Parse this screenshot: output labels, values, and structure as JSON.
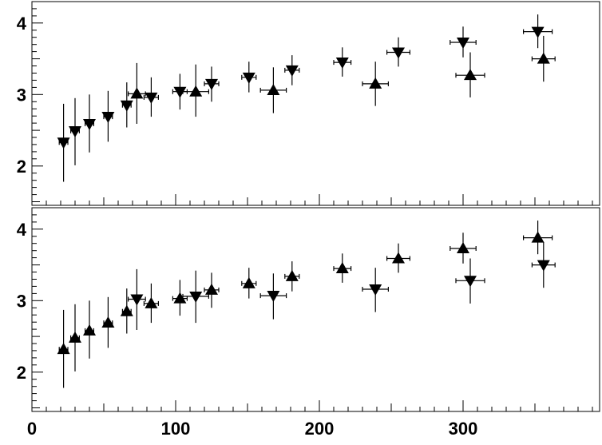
{
  "chart_data": {
    "type": "scatter",
    "x_ticks": [
      0,
      100,
      200,
      300
    ],
    "x_tick_labels": [
      "0",
      "100",
      "200",
      "300"
    ],
    "xlim": [
      0,
      395
    ],
    "panels": [
      {
        "ylim": [
          1.45,
          4.3
        ],
        "y_ticks": [
          2,
          3,
          4
        ],
        "y_tick_labels": [
          "2",
          "3",
          "4"
        ],
        "points": [
          {
            "x": 22,
            "y": 2.33,
            "xerr": 3,
            "ylo": 1.78,
            "yhi": 2.87,
            "marker": "down"
          },
          {
            "x": 30,
            "y": 2.49,
            "xerr": 3,
            "ylo": 2.01,
            "yhi": 2.95,
            "marker": "down"
          },
          {
            "x": 40,
            "y": 2.59,
            "xerr": 3,
            "ylo": 2.19,
            "yhi": 3.0,
            "marker": "down"
          },
          {
            "x": 53,
            "y": 2.69,
            "xerr": 3,
            "ylo": 2.34,
            "yhi": 3.05,
            "marker": "down"
          },
          {
            "x": 66,
            "y": 2.85,
            "xerr": 3,
            "ylo": 2.54,
            "yhi": 3.17,
            "marker": "down"
          },
          {
            "x": 73,
            "y": 3.01,
            "xerr": 6,
            "ylo": 2.59,
            "yhi": 3.44,
            "marker": "up"
          },
          {
            "x": 83,
            "y": 2.96,
            "xerr": 5,
            "ylo": 2.69,
            "yhi": 3.24,
            "marker": "down"
          },
          {
            "x": 103,
            "y": 3.04,
            "xerr": 5,
            "ylo": 2.79,
            "yhi": 3.29,
            "marker": "down"
          },
          {
            "x": 114,
            "y": 3.04,
            "xerr": 9,
            "ylo": 2.69,
            "yhi": 3.42,
            "marker": "up"
          },
          {
            "x": 125,
            "y": 3.15,
            "xerr": 5,
            "ylo": 2.9,
            "yhi": 3.39,
            "marker": "down"
          },
          {
            "x": 151,
            "y": 3.24,
            "xerr": 5,
            "ylo": 3.03,
            "yhi": 3.46,
            "marker": "down"
          },
          {
            "x": 168,
            "y": 3.06,
            "xerr": 9,
            "ylo": 2.74,
            "yhi": 3.38,
            "marker": "up"
          },
          {
            "x": 181,
            "y": 3.34,
            "xerr": 5,
            "ylo": 3.13,
            "yhi": 3.55,
            "marker": "down"
          },
          {
            "x": 216,
            "y": 3.45,
            "xerr": 6,
            "ylo": 3.25,
            "yhi": 3.66,
            "marker": "down"
          },
          {
            "x": 239,
            "y": 3.15,
            "xerr": 9,
            "ylo": 2.84,
            "yhi": 3.46,
            "marker": "up"
          },
          {
            "x": 255,
            "y": 3.59,
            "xerr": 8,
            "ylo": 3.39,
            "yhi": 3.8,
            "marker": "down"
          },
          {
            "x": 300,
            "y": 3.73,
            "xerr": 9,
            "ylo": 3.52,
            "yhi": 3.95,
            "marker": "down"
          },
          {
            "x": 305,
            "y": 3.27,
            "xerr": 10,
            "ylo": 2.96,
            "yhi": 3.59,
            "marker": "up"
          },
          {
            "x": 352,
            "y": 3.88,
            "xerr": 10,
            "ylo": 3.65,
            "yhi": 4.12,
            "marker": "down"
          },
          {
            "x": 356,
            "y": 3.5,
            "xerr": 8,
            "ylo": 3.18,
            "yhi": 3.82,
            "marker": "up"
          }
        ]
      },
      {
        "ylim": [
          1.45,
          4.3
        ],
        "y_ticks": [
          2,
          3,
          4
        ],
        "y_tick_labels": [
          "2",
          "3",
          "4"
        ],
        "points": [
          {
            "x": 22,
            "y": 2.32,
            "xerr": 3,
            "ylo": 1.78,
            "yhi": 2.87,
            "marker": "up"
          },
          {
            "x": 30,
            "y": 2.48,
            "xerr": 3,
            "ylo": 2.01,
            "yhi": 2.95,
            "marker": "up"
          },
          {
            "x": 40,
            "y": 2.58,
            "xerr": 3,
            "ylo": 2.19,
            "yhi": 3.0,
            "marker": "up"
          },
          {
            "x": 53,
            "y": 2.69,
            "xerr": 3,
            "ylo": 2.34,
            "yhi": 3.05,
            "marker": "up"
          },
          {
            "x": 66,
            "y": 2.85,
            "xerr": 3,
            "ylo": 2.54,
            "yhi": 3.17,
            "marker": "up"
          },
          {
            "x": 73,
            "y": 3.02,
            "xerr": 6,
            "ylo": 2.59,
            "yhi": 3.44,
            "marker": "down"
          },
          {
            "x": 83,
            "y": 2.96,
            "xerr": 5,
            "ylo": 2.69,
            "yhi": 3.24,
            "marker": "up"
          },
          {
            "x": 103,
            "y": 3.03,
            "xerr": 5,
            "ylo": 2.79,
            "yhi": 3.29,
            "marker": "up"
          },
          {
            "x": 114,
            "y": 3.06,
            "xerr": 9,
            "ylo": 2.69,
            "yhi": 3.42,
            "marker": "down"
          },
          {
            "x": 125,
            "y": 3.15,
            "xerr": 5,
            "ylo": 2.9,
            "yhi": 3.39,
            "marker": "up"
          },
          {
            "x": 151,
            "y": 3.24,
            "xerr": 5,
            "ylo": 3.03,
            "yhi": 3.46,
            "marker": "up"
          },
          {
            "x": 168,
            "y": 3.07,
            "xerr": 9,
            "ylo": 2.74,
            "yhi": 3.38,
            "marker": "down"
          },
          {
            "x": 181,
            "y": 3.34,
            "xerr": 5,
            "ylo": 3.13,
            "yhi": 3.55,
            "marker": "up"
          },
          {
            "x": 216,
            "y": 3.45,
            "xerr": 6,
            "ylo": 3.25,
            "yhi": 3.66,
            "marker": "up"
          },
          {
            "x": 239,
            "y": 3.16,
            "xerr": 9,
            "ylo": 2.84,
            "yhi": 3.46,
            "marker": "down"
          },
          {
            "x": 255,
            "y": 3.59,
            "xerr": 8,
            "ylo": 3.39,
            "yhi": 3.8,
            "marker": "up"
          },
          {
            "x": 300,
            "y": 3.73,
            "xerr": 9,
            "ylo": 3.52,
            "yhi": 3.95,
            "marker": "up"
          },
          {
            "x": 305,
            "y": 3.28,
            "xerr": 10,
            "ylo": 2.96,
            "yhi": 3.59,
            "marker": "down"
          },
          {
            "x": 352,
            "y": 3.88,
            "xerr": 10,
            "ylo": 3.65,
            "yhi": 4.12,
            "marker": "up"
          },
          {
            "x": 356,
            "y": 3.5,
            "xerr": 8,
            "ylo": 3.18,
            "yhi": 3.82,
            "marker": "down"
          }
        ]
      }
    ]
  }
}
